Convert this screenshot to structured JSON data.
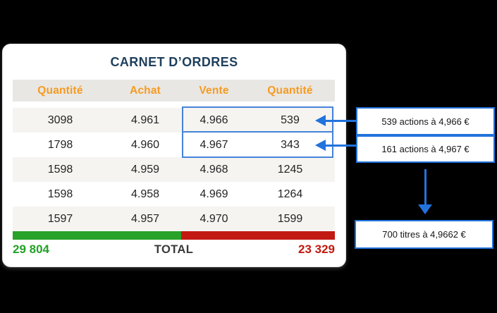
{
  "card": {
    "title": "CARNET D’ORDRES"
  },
  "table": {
    "headers": [
      "Quantité",
      "Achat",
      "Vente",
      "Quantité"
    ],
    "rows": [
      [
        "3098",
        "4.961",
        "4.966",
        "539"
      ],
      [
        "1798",
        "4.960",
        "4.967",
        "343"
      ],
      [
        "1598",
        "4.959",
        "4.968",
        "1245"
      ],
      [
        "1598",
        "4.958",
        "4.969",
        "1264"
      ],
      [
        "1597",
        "4.957",
        "4.970",
        "1599"
      ]
    ]
  },
  "totals": {
    "buy": "29 804",
    "label": "TOTAL",
    "sell": "23 329"
  },
  "callouts": {
    "best_ask": "539 actions à 4,966 €",
    "second_ask": "161 actions à 4,967 €",
    "result": "700 titres à 4,9662 €"
  },
  "colors": {
    "orange": "#F59B23",
    "navy": "#1E3F5C",
    "green": "#23A126",
    "red": "#C2190F",
    "blue": "#2273DC",
    "outline-blue": "#4583D9",
    "row-gray": "#F5F4F1",
    "header-gray": "#E9E7E4",
    "bar-green": "#28A228",
    "bar-red": "#C21A12"
  }
}
